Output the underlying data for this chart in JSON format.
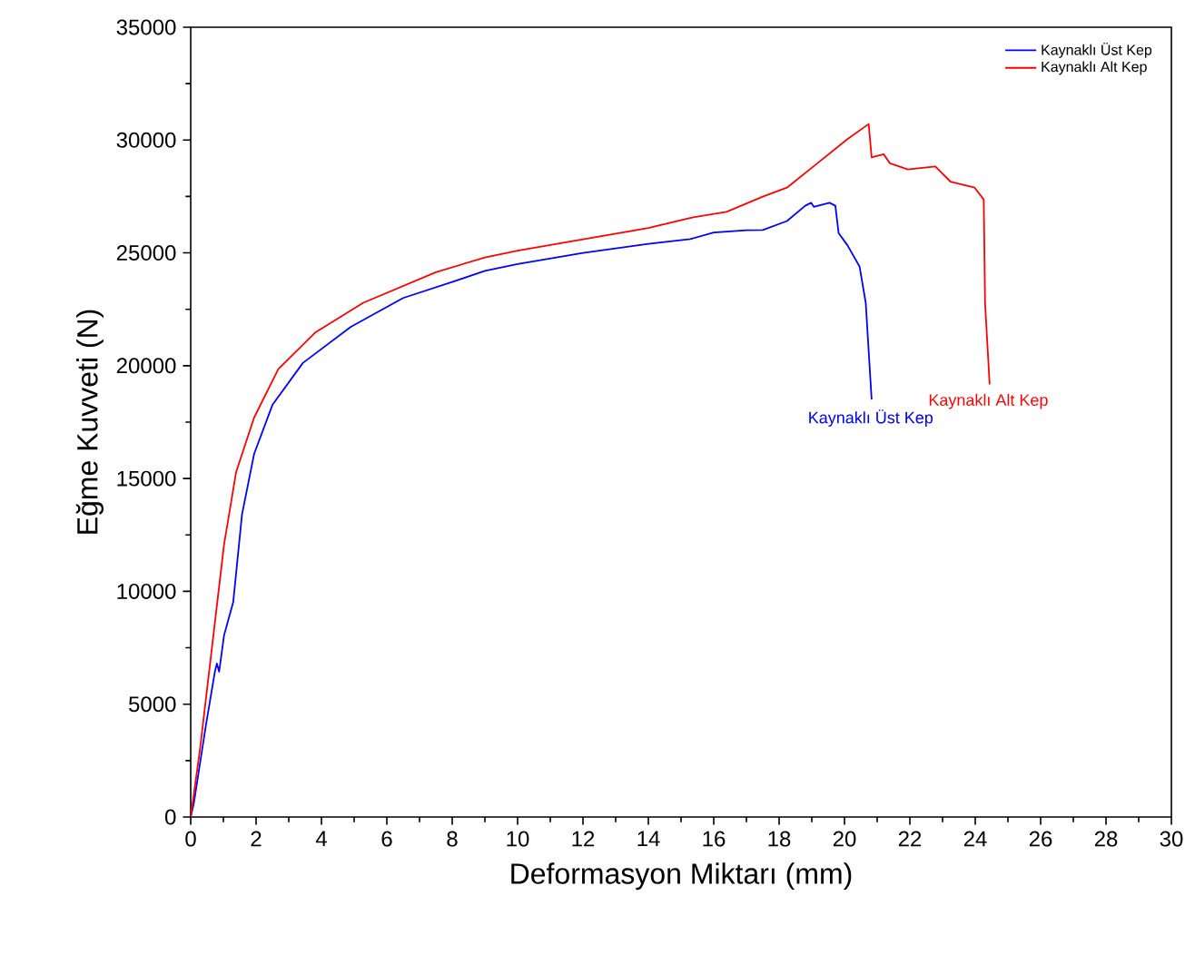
{
  "chart_data": {
    "type": "line",
    "xlabel": "Deformasyon Miktarı (mm)",
    "ylabel": "Eğme Kuvveti (N)",
    "xlim": [
      0,
      30
    ],
    "xticks": [
      0,
      2,
      4,
      6,
      8,
      10,
      12,
      14,
      16,
      18,
      20,
      22,
      24,
      26,
      28,
      30
    ],
    "ylim": [
      0,
      35000
    ],
    "yticks": [
      0,
      5000,
      10000,
      15000,
      20000,
      25000,
      30000,
      35000
    ],
    "legend": "top right",
    "grid": false,
    "marker": "none",
    "line_style": "solid",
    "series": [
      {
        "name": "Kaynaklı Üst Kep",
        "color": "#0000ff",
        "x": [
          0,
          0.09,
          0.46,
          0.74,
          0.8,
          0.87,
          1.02,
          1.3,
          1.57,
          1.94,
          2.5,
          3.43,
          4.9,
          6.5,
          8.06,
          9,
          10,
          12,
          14,
          15.28,
          16,
          17,
          17.5,
          18.24,
          18.8,
          18.98,
          19.06,
          19.54,
          19.72,
          19.82,
          20.09,
          20.46,
          20.65,
          20.83
        ],
        "values": [
          0,
          560,
          4020,
          6440,
          6800,
          6440,
          8050,
          9520,
          13410,
          16090,
          18260,
          20120,
          21720,
          23000,
          23740,
          24200,
          24500,
          25000,
          25400,
          25610,
          25900,
          26000,
          26010,
          26410,
          27090,
          27220,
          27040,
          27220,
          27090,
          25880,
          25340,
          24400,
          22790,
          18500
        ]
      },
      {
        "name": "Kaynaklı Alt Kep",
        "color": "#ff0000",
        "x": [
          0,
          0.28,
          0.65,
          1.02,
          1.39,
          1.94,
          2.68,
          3.8,
          5.28,
          7.5,
          9,
          10,
          12,
          14,
          15.28,
          16.39,
          17.5,
          18.24,
          19.17,
          20.09,
          20.74,
          20.83,
          21.2,
          21.39,
          21.94,
          22.78,
          23.24,
          23.98,
          24.26,
          24.3,
          24.44
        ],
        "values": [
          0,
          2950,
          7510,
          12070,
          15290,
          17700,
          19850,
          21460,
          22790,
          24140,
          24800,
          25100,
          25600,
          26100,
          26550,
          26820,
          27490,
          27890,
          28970,
          30040,
          30710,
          29230,
          29370,
          28970,
          28700,
          28830,
          28160,
          27890,
          27360,
          22790,
          19170
        ]
      }
    ],
    "annotations": [
      {
        "text": "Kaynaklı Üst Kep",
        "x": 20.8,
        "y": 18500
      },
      {
        "text": "Kaynaklı Alt Kep",
        "x": 24.4,
        "y": 19200
      }
    ]
  }
}
